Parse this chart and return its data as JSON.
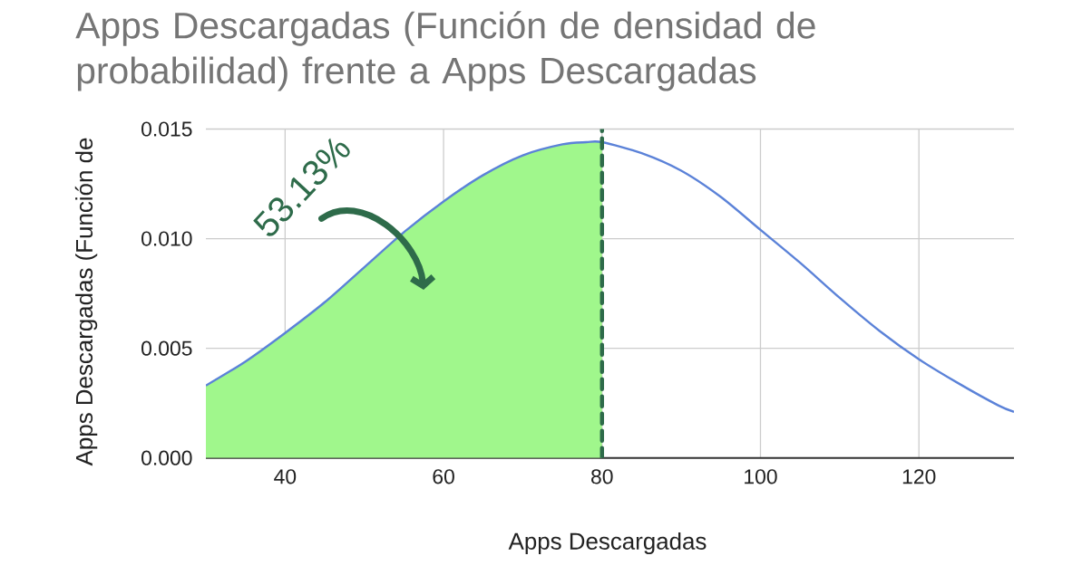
{
  "chart_data": {
    "type": "line",
    "title": "Apps Descargadas (Función de densidad de probabilidad) frente a Apps Descargadas",
    "xlabel": "Apps Descargadas",
    "ylabel": "Apps Descargadas (Función de",
    "x": [
      30,
      35,
      40,
      45,
      50,
      55,
      60,
      65,
      70,
      75,
      78,
      80,
      85,
      90,
      95,
      100,
      105,
      110,
      115,
      120,
      125,
      130,
      132
    ],
    "series": [
      {
        "type": "area",
        "color": "#a0f78c",
        "x": [
          30,
          35,
          40,
          45,
          50,
          55,
          60,
          65,
          70,
          75,
          78,
          80
        ],
        "values": [
          0.0033,
          0.0044,
          0.0057,
          0.0071,
          0.0087,
          0.0103,
          0.0117,
          0.0129,
          0.0138,
          0.0143,
          0.0144,
          0.0144
        ]
      },
      {
        "color": "#5b82d8",
        "values": [
          0.0033,
          0.0044,
          0.0057,
          0.0071,
          0.0087,
          0.0103,
          0.0117,
          0.0129,
          0.0138,
          0.0143,
          0.0144,
          0.0144,
          0.0139,
          0.0131,
          0.0119,
          0.0104,
          0.0089,
          0.0073,
          0.0058,
          0.0045,
          0.0034,
          0.0024,
          0.0021
        ]
      }
    ],
    "xlim": [
      30,
      132
    ],
    "ylim": [
      0,
      0.015
    ],
    "xticks": [
      40,
      60,
      80,
      100,
      120
    ],
    "yticks": [
      {
        "value": 0,
        "label": "0.000"
      },
      {
        "value": 0.005,
        "label": "0.005"
      },
      {
        "value": 0.01,
        "label": "0.010"
      },
      {
        "value": 0.015,
        "label": "0.015"
      }
    ],
    "grid": true,
    "ref_lines": [
      {
        "axis": "x",
        "value": 80,
        "color": "#2e6b4a",
        "line_style": "dashed"
      }
    ],
    "annotations": [
      "53.13%"
    ]
  }
}
